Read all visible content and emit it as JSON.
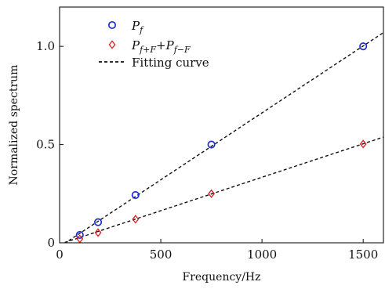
{
  "chart_data": {
    "type": "scatter",
    "xlabel": "Frequency/Hz",
    "ylabel": "Normalized spectrum",
    "xlim": [
      0,
      1600
    ],
    "ylim": [
      0,
      1.2
    ],
    "xticks": [
      0,
      500,
      1000,
      1500
    ],
    "yticks": [
      0,
      0.5,
      1.0
    ],
    "x_tick_labels": [
      "0",
      "500",
      "1000",
      "1500"
    ],
    "y_tick_labels": [
      "0",
      "0.5",
      "1.0"
    ],
    "grid": false,
    "legend_position": "top-left",
    "series": [
      {
        "name": "P_f",
        "marker": "circle",
        "color": "#1f2fd6",
        "points": [
          {
            "x": 100,
            "y": 0.04
          },
          {
            "x": 190,
            "y": 0.105
          },
          {
            "x": 375,
            "y": 0.243
          },
          {
            "x": 750,
            "y": 0.5
          },
          {
            "x": 1500,
            "y": 1.0
          }
        ]
      },
      {
        "name": "P_{f+F}+P_{f-F}",
        "marker": "diamond",
        "color": "#d62020",
        "points": [
          {
            "x": 100,
            "y": 0.02
          },
          {
            "x": 190,
            "y": 0.052
          },
          {
            "x": 375,
            "y": 0.12
          },
          {
            "x": 750,
            "y": 0.25
          },
          {
            "x": 1500,
            "y": 0.503
          }
        ]
      }
    ],
    "fits": [
      {
        "name": "Fitting curve",
        "style": "dashed",
        "color": "#111111",
        "x": [
          0,
          1600
        ],
        "y": [
          -0.02,
          1.07
        ]
      },
      {
        "name": "Fitting curve",
        "style": "dashed",
        "color": "#111111",
        "x": [
          0,
          1600
        ],
        "y": [
          -0.007,
          0.538
        ]
      }
    ],
    "legend": [
      {
        "marker": "circle",
        "color": "#1f2fd6",
        "main": "P",
        "sub": "f",
        "main2": "",
        "sub2": ""
      },
      {
        "marker": "diamond",
        "color": "#d62020",
        "main": "P",
        "sub": "f+F",
        "main2": "+P",
        "sub2": "f−F"
      },
      {
        "marker": "dashed",
        "color": "#111111",
        "main": "Fitting curve",
        "sub": "",
        "main2": "",
        "sub2": ""
      }
    ]
  }
}
